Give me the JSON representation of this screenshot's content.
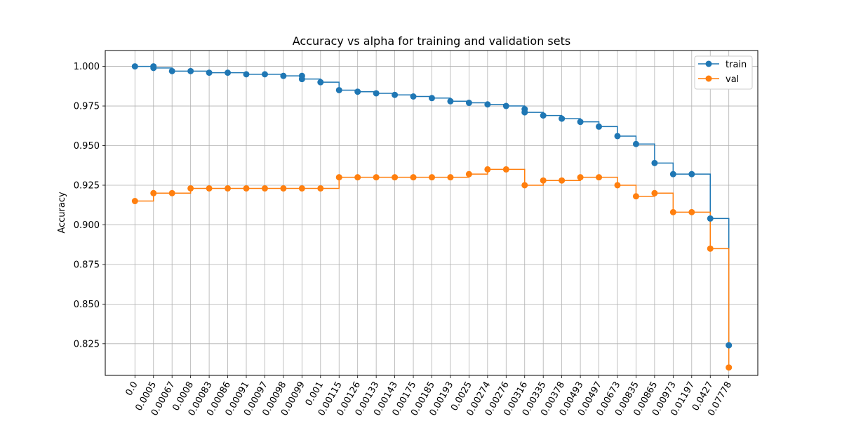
{
  "chart_data": {
    "type": "line",
    "title": "Accuracy vs alpha for training and validation sets",
    "xlabel": "",
    "ylabel": "Accuracy",
    "ylim": [
      0.805,
      1.01
    ],
    "yticks": [
      "0.825",
      "0.850",
      "0.875",
      "0.900",
      "0.925",
      "0.950",
      "0.975",
      "1.000"
    ],
    "categories": [
      "0.0",
      "0.0005",
      "0.00067",
      "0.0008",
      "0.00083",
      "0.00086",
      "0.00091",
      "0.00097",
      "0.00098",
      "0.00099",
      "0.001",
      "0.00115",
      "0.00126",
      "0.00133",
      "0.00143",
      "0.00175",
      "0.00185",
      "0.00193",
      "0.0025",
      "0.00274",
      "0.00276",
      "0.00316",
      "0.00335",
      "0.00378",
      "0.00493",
      "0.00497",
      "0.00673",
      "0.00835",
      "0.00865",
      "0.00973",
      "0.01197",
      "0.0427",
      "0.07778"
    ],
    "grid": true,
    "legend": "top-right",
    "step": "post",
    "series": [
      {
        "name": "train",
        "color": "#1f77b4",
        "points": [
          [
            0,
            1.0
          ],
          [
            1,
            1.0
          ],
          [
            1,
            0.999
          ],
          [
            2,
            0.997
          ],
          [
            3,
            0.997
          ],
          [
            4,
            0.996
          ],
          [
            5,
            0.996
          ],
          [
            6,
            0.995
          ],
          [
            7,
            0.995
          ],
          [
            8,
            0.994
          ],
          [
            9,
            0.994
          ],
          [
            9,
            0.992
          ],
          [
            10,
            0.99
          ],
          [
            11,
            0.985
          ],
          [
            12,
            0.984
          ],
          [
            13,
            0.983
          ],
          [
            14,
            0.982
          ],
          [
            15,
            0.981
          ],
          [
            16,
            0.98
          ],
          [
            17,
            0.978
          ],
          [
            18,
            0.977
          ],
          [
            19,
            0.976
          ],
          [
            20,
            0.975
          ],
          [
            21,
            0.973
          ],
          [
            21,
            0.971
          ],
          [
            22,
            0.969
          ],
          [
            23,
            0.967
          ],
          [
            24,
            0.965
          ],
          [
            25,
            0.962
          ],
          [
            26,
            0.956
          ],
          [
            27,
            0.951
          ],
          [
            28,
            0.939
          ],
          [
            29,
            0.932
          ],
          [
            30,
            0.932
          ],
          [
            31,
            0.904
          ],
          [
            32,
            0.824
          ]
        ]
      },
      {
        "name": "val",
        "color": "#ff7f0e",
        "points": [
          [
            0,
            0.915
          ],
          [
            1,
            0.92
          ],
          [
            2,
            0.92
          ],
          [
            3,
            0.923
          ],
          [
            4,
            0.923
          ],
          [
            5,
            0.923
          ],
          [
            6,
            0.923
          ],
          [
            7,
            0.923
          ],
          [
            8,
            0.923
          ],
          [
            9,
            0.923
          ],
          [
            10,
            0.923
          ],
          [
            11,
            0.93
          ],
          [
            12,
            0.93
          ],
          [
            13,
            0.93
          ],
          [
            14,
            0.93
          ],
          [
            15,
            0.93
          ],
          [
            16,
            0.93
          ],
          [
            17,
            0.93
          ],
          [
            18,
            0.932
          ],
          [
            19,
            0.935
          ],
          [
            20,
            0.935
          ],
          [
            21,
            0.925
          ],
          [
            22,
            0.928
          ],
          [
            23,
            0.928
          ],
          [
            24,
            0.93
          ],
          [
            25,
            0.93
          ],
          [
            26,
            0.925
          ],
          [
            27,
            0.918
          ],
          [
            28,
            0.92
          ],
          [
            29,
            0.908
          ],
          [
            30,
            0.908
          ],
          [
            31,
            0.885
          ],
          [
            32,
            0.81
          ]
        ]
      }
    ]
  }
}
